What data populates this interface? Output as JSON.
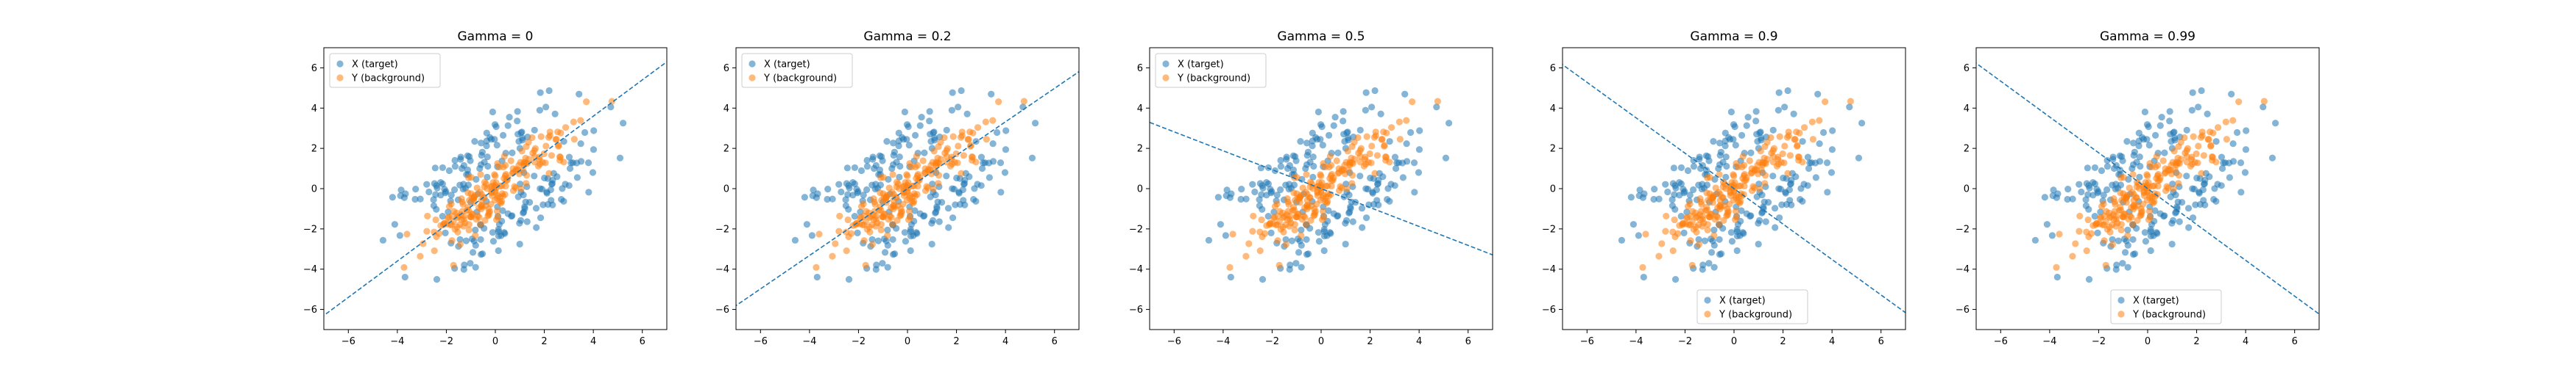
{
  "chart_data": [
    {
      "type": "scatter",
      "title": "Gamma = 0",
      "xlim": [
        -7,
        7
      ],
      "ylim": [
        -7,
        7
      ],
      "xticks": [
        -6,
        -4,
        -2,
        0,
        2,
        4,
        6
      ],
      "yticks": [
        -6,
        -4,
        -2,
        0,
        2,
        4,
        6
      ],
      "legend": "upper-left",
      "series": [
        {
          "name": "X (target)",
          "color": "#1f77b4",
          "seed": 11
        },
        {
          "name": "Y (background)",
          "color": "#ff7f0e",
          "seed": 29
        }
      ],
      "direction_line": {
        "color": "#1f77b4",
        "style": "dashed",
        "slope": 0.9
      }
    },
    {
      "type": "scatter",
      "title": "Gamma = 0.2",
      "xlim": [
        -7,
        7
      ],
      "ylim": [
        -7,
        7
      ],
      "xticks": [
        -6,
        -4,
        -2,
        0,
        2,
        4,
        6
      ],
      "yticks": [
        -6,
        -4,
        -2,
        0,
        2,
        4,
        6
      ],
      "legend": "upper-left",
      "series": [
        {
          "name": "X (target)",
          "color": "#1f77b4",
          "seed": 11
        },
        {
          "name": "Y (background)",
          "color": "#ff7f0e",
          "seed": 29
        }
      ],
      "direction_line": {
        "color": "#1f77b4",
        "style": "dashed",
        "slope": 0.83
      }
    },
    {
      "type": "scatter",
      "title": "Gamma = 0.5",
      "xlim": [
        -7,
        7
      ],
      "ylim": [
        -7,
        7
      ],
      "xticks": [
        -6,
        -4,
        -2,
        0,
        2,
        4,
        6
      ],
      "yticks": [
        -6,
        -4,
        -2,
        0,
        2,
        4,
        6
      ],
      "legend": "upper-left",
      "series": [
        {
          "name": "X (target)",
          "color": "#1f77b4",
          "seed": 11
        },
        {
          "name": "Y (background)",
          "color": "#ff7f0e",
          "seed": 29
        }
      ],
      "direction_line": {
        "color": "#1f77b4",
        "style": "dashed",
        "slope": -0.47
      }
    },
    {
      "type": "scatter",
      "title": "Gamma = 0.9",
      "xlim": [
        -7,
        7
      ],
      "ylim": [
        -7,
        7
      ],
      "xticks": [
        -6,
        -4,
        -2,
        0,
        2,
        4,
        6
      ],
      "yticks": [
        -6,
        -4,
        -2,
        0,
        2,
        4,
        6
      ],
      "legend": "lower-center",
      "series": [
        {
          "name": "X (target)",
          "color": "#1f77b4",
          "seed": 11
        },
        {
          "name": "Y (background)",
          "color": "#ff7f0e",
          "seed": 29
        }
      ],
      "direction_line": {
        "color": "#1f77b4",
        "style": "dashed",
        "slope": -0.88
      }
    },
    {
      "type": "scatter",
      "title": "Gamma = 0.99",
      "xlim": [
        -7,
        7
      ],
      "ylim": [
        -7,
        7
      ],
      "xticks": [
        -6,
        -4,
        -2,
        0,
        2,
        4,
        6
      ],
      "yticks": [
        -6,
        -4,
        -2,
        0,
        2,
        4,
        6
      ],
      "legend": "lower-center",
      "series": [
        {
          "name": "X (target)",
          "color": "#1f77b4",
          "seed": 11
        },
        {
          "name": "Y (background)",
          "color": "#ff7f0e",
          "seed": 29
        }
      ],
      "direction_line": {
        "color": "#1f77b4",
        "style": "dashed",
        "slope": -0.89
      }
    }
  ]
}
